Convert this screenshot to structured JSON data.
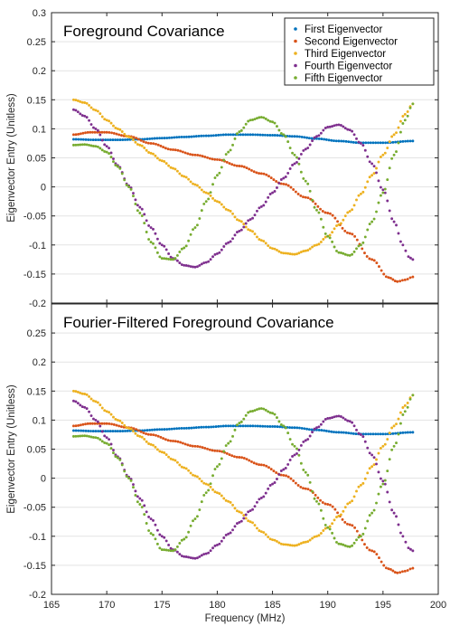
{
  "chart_data": [
    {
      "type": "scatter",
      "title": "Foreground Covariance",
      "xlabel": "",
      "ylabel": "Eigenvector Entry (Unitless)",
      "xlim": [
        165,
        200
      ],
      "ylim": [
        -0.2,
        0.3
      ],
      "xticks": [
        165,
        170,
        175,
        180,
        185,
        190,
        195,
        200
      ],
      "yticks": [
        -0.2,
        -0.15,
        -0.1,
        -0.05,
        0,
        0.05,
        0.1,
        0.15,
        0.2,
        0.25,
        0.3
      ],
      "xticklabels": [
        "",
        "",
        "",
        "",
        "",
        "",
        "",
        ""
      ],
      "yticklabels": [
        "-0.2",
        "-0.15",
        "-0.1",
        "-0.05",
        "0",
        "0.05",
        "0.1",
        "0.15",
        "0.2",
        "0.25",
        "0.3"
      ],
      "grid": "horizontal",
      "legend": "top-right",
      "series": [
        {
          "name": "First Eigenvector",
          "color": "#0072BD",
          "x": [
            167,
            169,
            171,
            173,
            175,
            177,
            179,
            181,
            183,
            185,
            187,
            189,
            191,
            193,
            195,
            197.7
          ],
          "y": [
            0.082,
            0.081,
            0.081,
            0.082,
            0.084,
            0.086,
            0.088,
            0.09,
            0.09,
            0.089,
            0.087,
            0.083,
            0.079,
            0.076,
            0.076,
            0.079
          ]
        },
        {
          "name": "Second Eigenvector",
          "color": "#D95319",
          "x": [
            167,
            168.5,
            170,
            172,
            174,
            176,
            178,
            180,
            182,
            184,
            186,
            188,
            190,
            192,
            194,
            195.5,
            196.3,
            197,
            197.7
          ],
          "y": [
            0.09,
            0.094,
            0.094,
            0.087,
            0.075,
            0.064,
            0.055,
            0.047,
            0.036,
            0.023,
            0.005,
            -0.018,
            -0.045,
            -0.08,
            -0.125,
            -0.156,
            -0.163,
            -0.16,
            -0.155
          ]
        },
        {
          "name": "Third Eigenvector",
          "color": "#EDB120",
          "x": [
            167,
            168,
            169,
            170,
            171,
            172,
            173,
            174,
            175,
            176,
            177,
            178,
            179,
            180,
            181,
            182,
            183,
            184,
            185,
            186,
            187,
            188,
            189,
            190,
            191,
            192,
            193,
            194,
            195,
            196,
            197,
            197.7
          ],
          "y": [
            0.15,
            0.145,
            0.132,
            0.115,
            0.1,
            0.086,
            0.072,
            0.058,
            0.045,
            0.032,
            0.018,
            0.004,
            -0.01,
            -0.025,
            -0.04,
            -0.058,
            -0.075,
            -0.092,
            -0.106,
            -0.114,
            -0.116,
            -0.11,
            -0.1,
            -0.085,
            -0.065,
            -0.042,
            -0.012,
            0.02,
            0.055,
            0.09,
            0.125,
            0.143
          ]
        },
        {
          "name": "Fourth Eigenvector",
          "color": "#7E2F8E",
          "x": [
            167,
            168,
            169,
            170,
            171,
            172,
            173,
            174,
            175,
            176,
            177,
            178,
            179,
            180,
            181,
            182,
            183,
            184,
            185,
            186,
            187,
            188,
            189,
            190,
            191,
            192,
            193,
            194,
            195,
            196,
            196.8,
            197.3,
            197.7
          ],
          "y": [
            0.133,
            0.122,
            0.1,
            0.07,
            0.037,
            0.002,
            -0.035,
            -0.07,
            -0.1,
            -0.123,
            -0.135,
            -0.138,
            -0.13,
            -0.115,
            -0.096,
            -0.076,
            -0.056,
            -0.034,
            -0.01,
            0.015,
            0.04,
            0.065,
            0.087,
            0.103,
            0.107,
            0.098,
            0.075,
            0.04,
            -0.005,
            -0.06,
            -0.1,
            -0.12,
            -0.125
          ]
        },
        {
          "name": "Fifth Eigenvector",
          "color": "#77AC30",
          "x": [
            167,
            168,
            169,
            170,
            171,
            172,
            173,
            174,
            175,
            176,
            177,
            178,
            179,
            180,
            181,
            182,
            183,
            184,
            185,
            186,
            187,
            188,
            189,
            190,
            191,
            192,
            193,
            194,
            195,
            196,
            197,
            197.7
          ],
          "y": [
            0.072,
            0.073,
            0.07,
            0.06,
            0.035,
            0.0,
            -0.045,
            -0.095,
            -0.123,
            -0.125,
            -0.105,
            -0.07,
            -0.025,
            0.02,
            0.06,
            0.095,
            0.115,
            0.12,
            0.112,
            0.09,
            0.055,
            0.01,
            -0.04,
            -0.085,
            -0.113,
            -0.118,
            -0.1,
            -0.06,
            -0.01,
            0.055,
            0.115,
            0.143
          ]
        }
      ]
    },
    {
      "type": "scatter",
      "title": "Fourier-Filtered Foreground Covariance",
      "xlabel": "Frequency (MHz)",
      "ylabel": "Eigenvector Entry (Unitless)",
      "xlim": [
        165,
        200
      ],
      "ylim": [
        -0.2,
        0.3
      ],
      "xticks": [
        165,
        170,
        175,
        180,
        185,
        190,
        195,
        200
      ],
      "yticks": [
        -0.2,
        -0.15,
        -0.1,
        -0.05,
        0,
        0.05,
        0.1,
        0.15,
        0.2,
        0.25,
        0.3
      ],
      "xticklabels": [
        "165",
        "170",
        "175",
        "180",
        "185",
        "190",
        "195",
        "200"
      ],
      "yticklabels": [
        "-0.2",
        "-0.15",
        "-0.1",
        "-0.05",
        "0",
        "0.05",
        "0.1",
        "0.15",
        "0.2",
        "0.25",
        ""
      ],
      "grid": "horizontal",
      "legend": "none",
      "series": [
        {
          "name": "First Eigenvector",
          "color": "#0072BD",
          "x": [
            167,
            169,
            171,
            173,
            175,
            177,
            179,
            181,
            183,
            185,
            187,
            189,
            191,
            193,
            195,
            197.7
          ],
          "y": [
            0.082,
            0.081,
            0.081,
            0.082,
            0.084,
            0.086,
            0.088,
            0.09,
            0.09,
            0.089,
            0.087,
            0.083,
            0.079,
            0.076,
            0.076,
            0.079
          ]
        },
        {
          "name": "Second Eigenvector",
          "color": "#D95319",
          "x": [
            167,
            168.5,
            170,
            172,
            174,
            176,
            178,
            180,
            182,
            184,
            186,
            188,
            190,
            192,
            194,
            195.5,
            196.3,
            197,
            197.7
          ],
          "y": [
            0.09,
            0.094,
            0.094,
            0.087,
            0.075,
            0.064,
            0.055,
            0.047,
            0.036,
            0.023,
            0.005,
            -0.018,
            -0.045,
            -0.08,
            -0.125,
            -0.156,
            -0.163,
            -0.16,
            -0.155
          ]
        },
        {
          "name": "Third Eigenvector",
          "color": "#EDB120",
          "x": [
            167,
            168,
            169,
            170,
            171,
            172,
            173,
            174,
            175,
            176,
            177,
            178,
            179,
            180,
            181,
            182,
            183,
            184,
            185,
            186,
            187,
            188,
            189,
            190,
            191,
            192,
            193,
            194,
            195,
            196,
            197,
            197.7
          ],
          "y": [
            0.15,
            0.145,
            0.132,
            0.115,
            0.1,
            0.086,
            0.072,
            0.058,
            0.045,
            0.032,
            0.018,
            0.004,
            -0.01,
            -0.025,
            -0.04,
            -0.058,
            -0.075,
            -0.092,
            -0.106,
            -0.114,
            -0.116,
            -0.11,
            -0.1,
            -0.085,
            -0.065,
            -0.042,
            -0.012,
            0.02,
            0.055,
            0.09,
            0.125,
            0.143
          ]
        },
        {
          "name": "Fourth Eigenvector",
          "color": "#7E2F8E",
          "x": [
            167,
            168,
            169,
            170,
            171,
            172,
            173,
            174,
            175,
            176,
            177,
            178,
            179,
            180,
            181,
            182,
            183,
            184,
            185,
            186,
            187,
            188,
            189,
            190,
            191,
            192,
            193,
            194,
            195,
            196,
            196.8,
            197.3,
            197.7
          ],
          "y": [
            0.133,
            0.122,
            0.1,
            0.07,
            0.037,
            0.002,
            -0.035,
            -0.07,
            -0.1,
            -0.123,
            -0.135,
            -0.138,
            -0.13,
            -0.115,
            -0.096,
            -0.076,
            -0.056,
            -0.034,
            -0.01,
            0.015,
            0.04,
            0.065,
            0.087,
            0.103,
            0.107,
            0.098,
            0.075,
            0.04,
            -0.005,
            -0.06,
            -0.1,
            -0.12,
            -0.125
          ]
        },
        {
          "name": "Fifth Eigenvector",
          "color": "#77AC30",
          "x": [
            167,
            168,
            169,
            170,
            171,
            172,
            173,
            174,
            175,
            176,
            177,
            178,
            179,
            180,
            181,
            182,
            183,
            184,
            185,
            186,
            187,
            188,
            189,
            190,
            191,
            192,
            193,
            194,
            195,
            196,
            197,
            197.7
          ],
          "y": [
            0.072,
            0.073,
            0.07,
            0.06,
            0.035,
            0.0,
            -0.045,
            -0.095,
            -0.123,
            -0.125,
            -0.105,
            -0.07,
            -0.025,
            0.02,
            0.06,
            0.095,
            0.115,
            0.12,
            0.112,
            0.09,
            0.055,
            0.01,
            -0.04,
            -0.085,
            -0.113,
            -0.118,
            -0.1,
            -0.06,
            -0.01,
            0.055,
            0.115,
            0.143
          ]
        }
      ]
    }
  ]
}
